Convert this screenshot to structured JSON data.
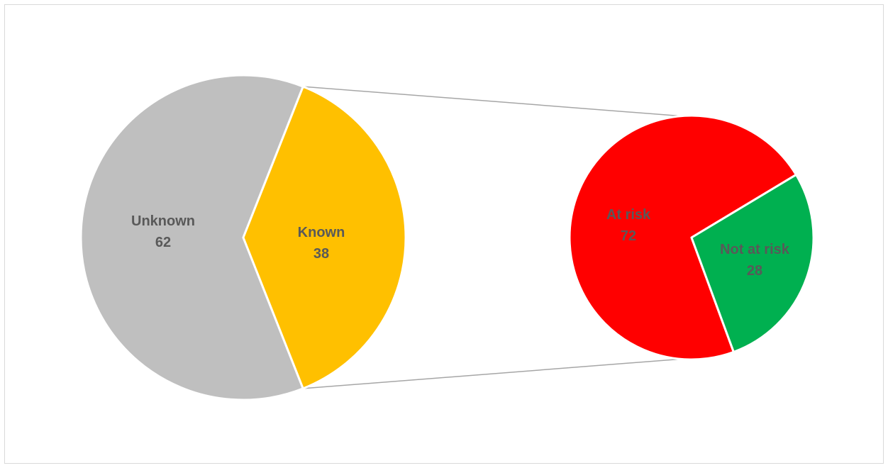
{
  "chart_data": {
    "type": "pie",
    "subtype": "pie-of-pie",
    "primary": {
      "slices": [
        {
          "label": "Unknown",
          "value": 62,
          "color": "#bfbfbf"
        },
        {
          "label": "Known",
          "value": 38,
          "color": "#ffc000"
        }
      ]
    },
    "secondary": {
      "source_slice": "Known",
      "slices": [
        {
          "label": "At risk",
          "value": 72,
          "color": "#ff0000"
        },
        {
          "label": "Not at risk",
          "value": 28,
          "color": "#00b050"
        }
      ]
    },
    "connector_color": "#a6a6a6",
    "label_color": "#595959",
    "slice_border_color": "#ffffff",
    "legend": "none"
  }
}
